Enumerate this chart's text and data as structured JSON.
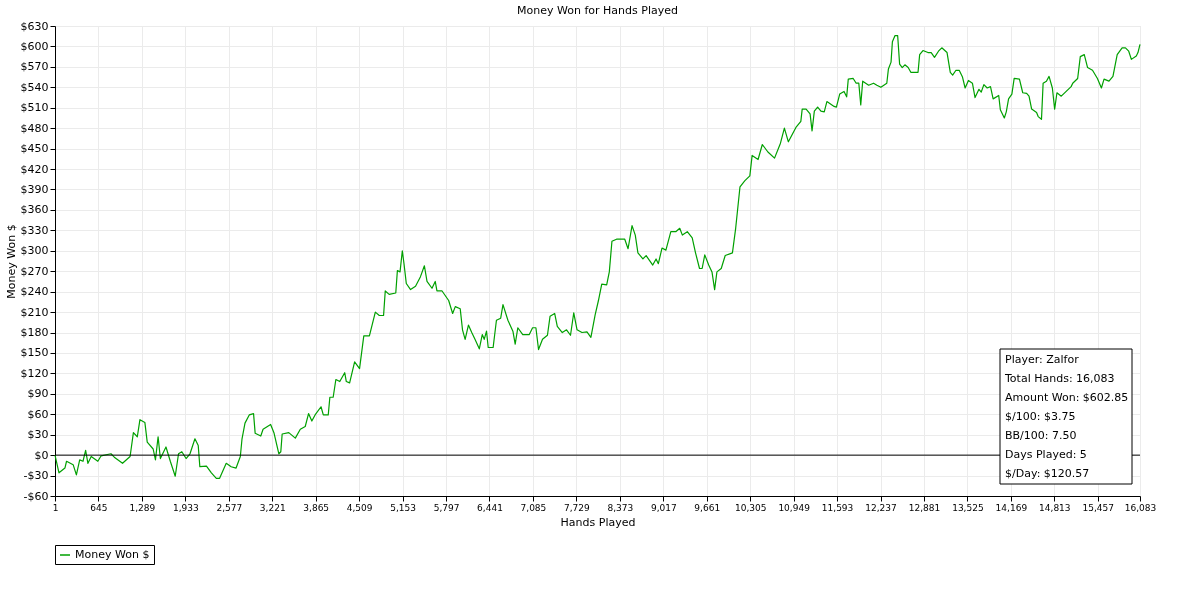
{
  "chart_data": {
    "type": "line",
    "title": "Money Won for Hands Played",
    "xlabel": "Hands Played",
    "ylabel": "Money Won $",
    "series": [
      {
        "name": "Money Won $",
        "color": "#00a000",
        "x": [
          1,
          60,
          148,
          172,
          270,
          318,
          367,
          416,
          455,
          489,
          538,
          636,
          685,
          831,
          880,
          1002,
          1114,
          1163,
          1221,
          1260,
          1333,
          1368,
          1456,
          1490,
          1529,
          1563,
          1646,
          1710,
          1783,
          1832,
          1881,
          1944,
          2002,
          2075,
          2124,
          2148,
          2246,
          2319,
          2392,
          2441,
          2539,
          2612,
          2685,
          2748,
          2773,
          2817,
          2880,
          2944,
          2968,
          3051,
          3085,
          3197,
          3246,
          3319,
          3348,
          3368,
          3466,
          3563,
          3637,
          3710,
          3759,
          3808,
          3856,
          3944,
          3978,
          4051,
          4075,
          4124,
          4164,
          4222,
          4295,
          4319,
          4368,
          4442,
          4515,
          4578,
          4661,
          4749,
          4808,
          4871,
          4896,
          4954,
          5052,
          5076,
          5115,
          5149,
          5174,
          5208,
          5271,
          5345,
          5418,
          5476,
          5515,
          5589,
          5637,
          5662,
          5738,
          5836,
          5895,
          5934,
          6007,
          6041,
          6080,
          6129,
          6178,
          6226,
          6290,
          6334,
          6363,
          6397,
          6422,
          6495,
          6544,
          6607,
          6641,
          6714,
          6788,
          6822,
          6861,
          6934,
          7031,
          7080,
          7129,
          7168,
          7227,
          7300,
          7339,
          7407,
          7446,
          7520,
          7583,
          7642,
          7690,
          7739,
          7812,
          7886,
          7944,
          8007,
          8056,
          8105,
          8178,
          8217,
          8256,
          8324,
          8446,
          8495,
          8554,
          8602,
          8641,
          8715,
          8763,
          8812,
          8861,
          8910,
          8944,
          8998,
          9056,
          9129,
          9202,
          9261,
          9300,
          9373,
          9446,
          9495,
          9554,
          9593,
          9632,
          9690,
          9739,
          9778,
          9812,
          9876,
          9935,
          10042,
          10090,
          10154,
          10227,
          10300,
          10334,
          10422,
          10485,
          10568,
          10666,
          10754,
          10812,
          10871,
          10983,
          11056,
          11076,
          11134,
          11193,
          11222,
          11256,
          11305,
          11354,
          11403,
          11442,
          11549,
          11583,
          11632,
          11696,
          11735,
          11759,
          11832,
          11876,
          11915,
          11944,
          11973,
          12061,
          12134,
          12183,
          12242,
          12330,
          12354,
          12393,
          12413,
          12452,
          12491,
          12520,
          12559,
          12598,
          12647,
          12686,
          12793,
          12817,
          12866,
          12940,
          12988,
          13037,
          13096,
          13145,
          13223,
          13271,
          13306,
          13355,
          13403,
          13452,
          13491,
          13540,
          13599,
          13638,
          13696,
          13730,
          13769,
          13818,
          13867,
          13906,
          13989,
          14013,
          14072,
          14101,
          14135,
          14184,
          14218,
          14296,
          14345,
          14403,
          14438,
          14477,
          14550,
          14574,
          14623,
          14647,
          14696,
          14735,
          14784,
          14818,
          14852,
          14916,
          14989,
          15062,
          15086,
          15159,
          15198,
          15257,
          15306,
          15379,
          15452,
          15511,
          15550,
          15623,
          15682,
          15745,
          15818,
          15867,
          15916,
          15955,
          16028,
          16053,
          16083
        ],
        "values": [
          0,
          -26,
          -19,
          -9,
          -14,
          -29,
          -7,
          -9,
          7,
          -12,
          -2,
          -9,
          -1,
          2,
          -3,
          -12,
          -2,
          33,
          27,
          52,
          48,
          19,
          9,
          -7,
          27,
          -5,
          12,
          -9,
          -31,
          2,
          5,
          -5,
          2,
          24,
          14,
          -17,
          -16,
          -26,
          -34,
          -34,
          -12,
          -17,
          -19,
          -2,
          24,
          47,
          59,
          61,
          32,
          28,
          38,
          45,
          33,
          2,
          5,
          31,
          33,
          25,
          38,
          42,
          61,
          50,
          59,
          71,
          59,
          59,
          85,
          85,
          111,
          108,
          121,
          108,
          106,
          137,
          127,
          175,
          175,
          210,
          205,
          205,
          241,
          236,
          238,
          271,
          269,
          300,
          281,
          252,
          243,
          248,
          262,
          278,
          255,
          245,
          255,
          241,
          241,
          227,
          208,
          218,
          215,
          184,
          170,
          191,
          180,
          170,
          156,
          177,
          170,
          182,
          158,
          158,
          198,
          201,
          221,
          198,
          182,
          163,
          187,
          177,
          177,
          187,
          187,
          155,
          170,
          176,
          204,
          208,
          189,
          180,
          184,
          176,
          209,
          184,
          180,
          181,
          173,
          206,
          227,
          251,
          250,
          269,
          314,
          317,
          317,
          303,
          337,
          323,
          297,
          288,
          293,
          286,
          279,
          288,
          281,
          304,
          301,
          328,
          328,
          333,
          323,
          328,
          319,
          297,
          274,
          274,
          294,
          279,
          269,
          243,
          269,
          274,
          293,
          297,
          333,
          394,
          403,
          410,
          440,
          434,
          456,
          445,
          436,
          458,
          480,
          460,
          481,
          490,
          508,
          508,
          501,
          476,
          505,
          511,
          505,
          504,
          519,
          512,
          511,
          530,
          534,
          526,
          552,
          553,
          546,
          546,
          514,
          549,
          543,
          546,
          543,
          540,
          546,
          567,
          577,
          607,
          616,
          616,
          574,
          569,
          573,
          569,
          562,
          562,
          588,
          594,
          591,
          591,
          584,
          593,
          598,
          591,
          562,
          558,
          565,
          565,
          555,
          539,
          550,
          546,
          525,
          537,
          533,
          544,
          539,
          541,
          523,
          528,
          507,
          495,
          504,
          523,
          530,
          553,
          552,
          532,
          531,
          527,
          508,
          503,
          497,
          493,
          546,
          549,
          556,
          539,
          508,
          532,
          527,
          534,
          541,
          546,
          553,
          585,
          588,
          569,
          565,
          553,
          539,
          552,
          549,
          556,
          588,
          598,
          598,
          593,
          581,
          586,
          591,
          603
        ]
      }
    ],
    "xlim": [
      1,
      16083
    ],
    "xticks": [
      1,
      645,
      {
        "value": 1289,
        "label": "1,289"
      },
      {
        "value": 1933,
        "label": "1,933"
      },
      {
        "value": 2577,
        "label": "2,577"
      },
      {
        "value": 3221,
        "label": "3,221"
      },
      {
        "value": 3865,
        "label": "3,865"
      },
      {
        "value": 4509,
        "label": "4,509"
      },
      {
        "value": 5153,
        "label": "5,153"
      },
      {
        "value": 5797,
        "label": "5,797"
      },
      {
        "value": 6441,
        "label": "6,441"
      },
      {
        "value": 7085,
        "label": "7,085"
      },
      {
        "value": 7729,
        "label": "7,729"
      },
      {
        "value": 8373,
        "label": "8,373"
      },
      {
        "value": 9017,
        "label": "9,017"
      },
      {
        "value": 9661,
        "label": "9,661"
      },
      {
        "value": 10305,
        "label": "10,305"
      },
      {
        "value": 10949,
        "label": "10,949"
      },
      {
        "value": 11593,
        "label": "11,593"
      },
      {
        "value": 12237,
        "label": "12,237"
      },
      {
        "value": 12881,
        "label": "12,881"
      },
      {
        "value": 13525,
        "label": "13,525"
      },
      {
        "value": 14169,
        "label": "14,169"
      },
      {
        "value": 14813,
        "label": "14,813"
      },
      {
        "value": 15457,
        "label": "15,457"
      },
      {
        "value": 16083,
        "label": "16,083"
      }
    ],
    "ylim": [
      -60,
      630
    ],
    "yticks": [
      {
        "value": -60,
        "label": "-$60"
      },
      {
        "value": -30,
        "label": "-$30"
      },
      {
        "value": 0,
        "label": "$0"
      },
      {
        "value": 30,
        "label": "$30"
      },
      {
        "value": 60,
        "label": "$60"
      },
      {
        "value": 90,
        "label": "$90"
      },
      {
        "value": 120,
        "label": "$120"
      },
      {
        "value": 150,
        "label": "$150"
      },
      {
        "value": 180,
        "label": "$180"
      },
      {
        "value": 210,
        "label": "$210"
      },
      {
        "value": 240,
        "label": "$240"
      },
      {
        "value": 270,
        "label": "$270"
      },
      {
        "value": 300,
        "label": "$300"
      },
      {
        "value": 330,
        "label": "$330"
      },
      {
        "value": 360,
        "label": "$360"
      },
      {
        "value": 390,
        "label": "$390"
      },
      {
        "value": 420,
        "label": "$420"
      },
      {
        "value": 450,
        "label": "$450"
      },
      {
        "value": 480,
        "label": "$480"
      },
      {
        "value": 510,
        "label": "$510"
      },
      {
        "value": 540,
        "label": "$540"
      },
      {
        "value": 570,
        "label": "$570"
      },
      {
        "value": 600,
        "label": "$600"
      },
      {
        "value": 630,
        "label": "$630"
      }
    ],
    "ref_lines": [
      {
        "axis": "y",
        "value": 0,
        "color": "#000000"
      }
    ],
    "annotations": [
      "Player: Zalfor",
      "Total Hands: 16,083",
      "Amount Won: $602.85",
      "$/100: $3.75",
      "BB/100: 7.50",
      "Days Played: 5",
      "$/Day: $120.57"
    ],
    "grid": true,
    "legend": "bottom",
    "marker": "none",
    "line_style": "solid"
  }
}
